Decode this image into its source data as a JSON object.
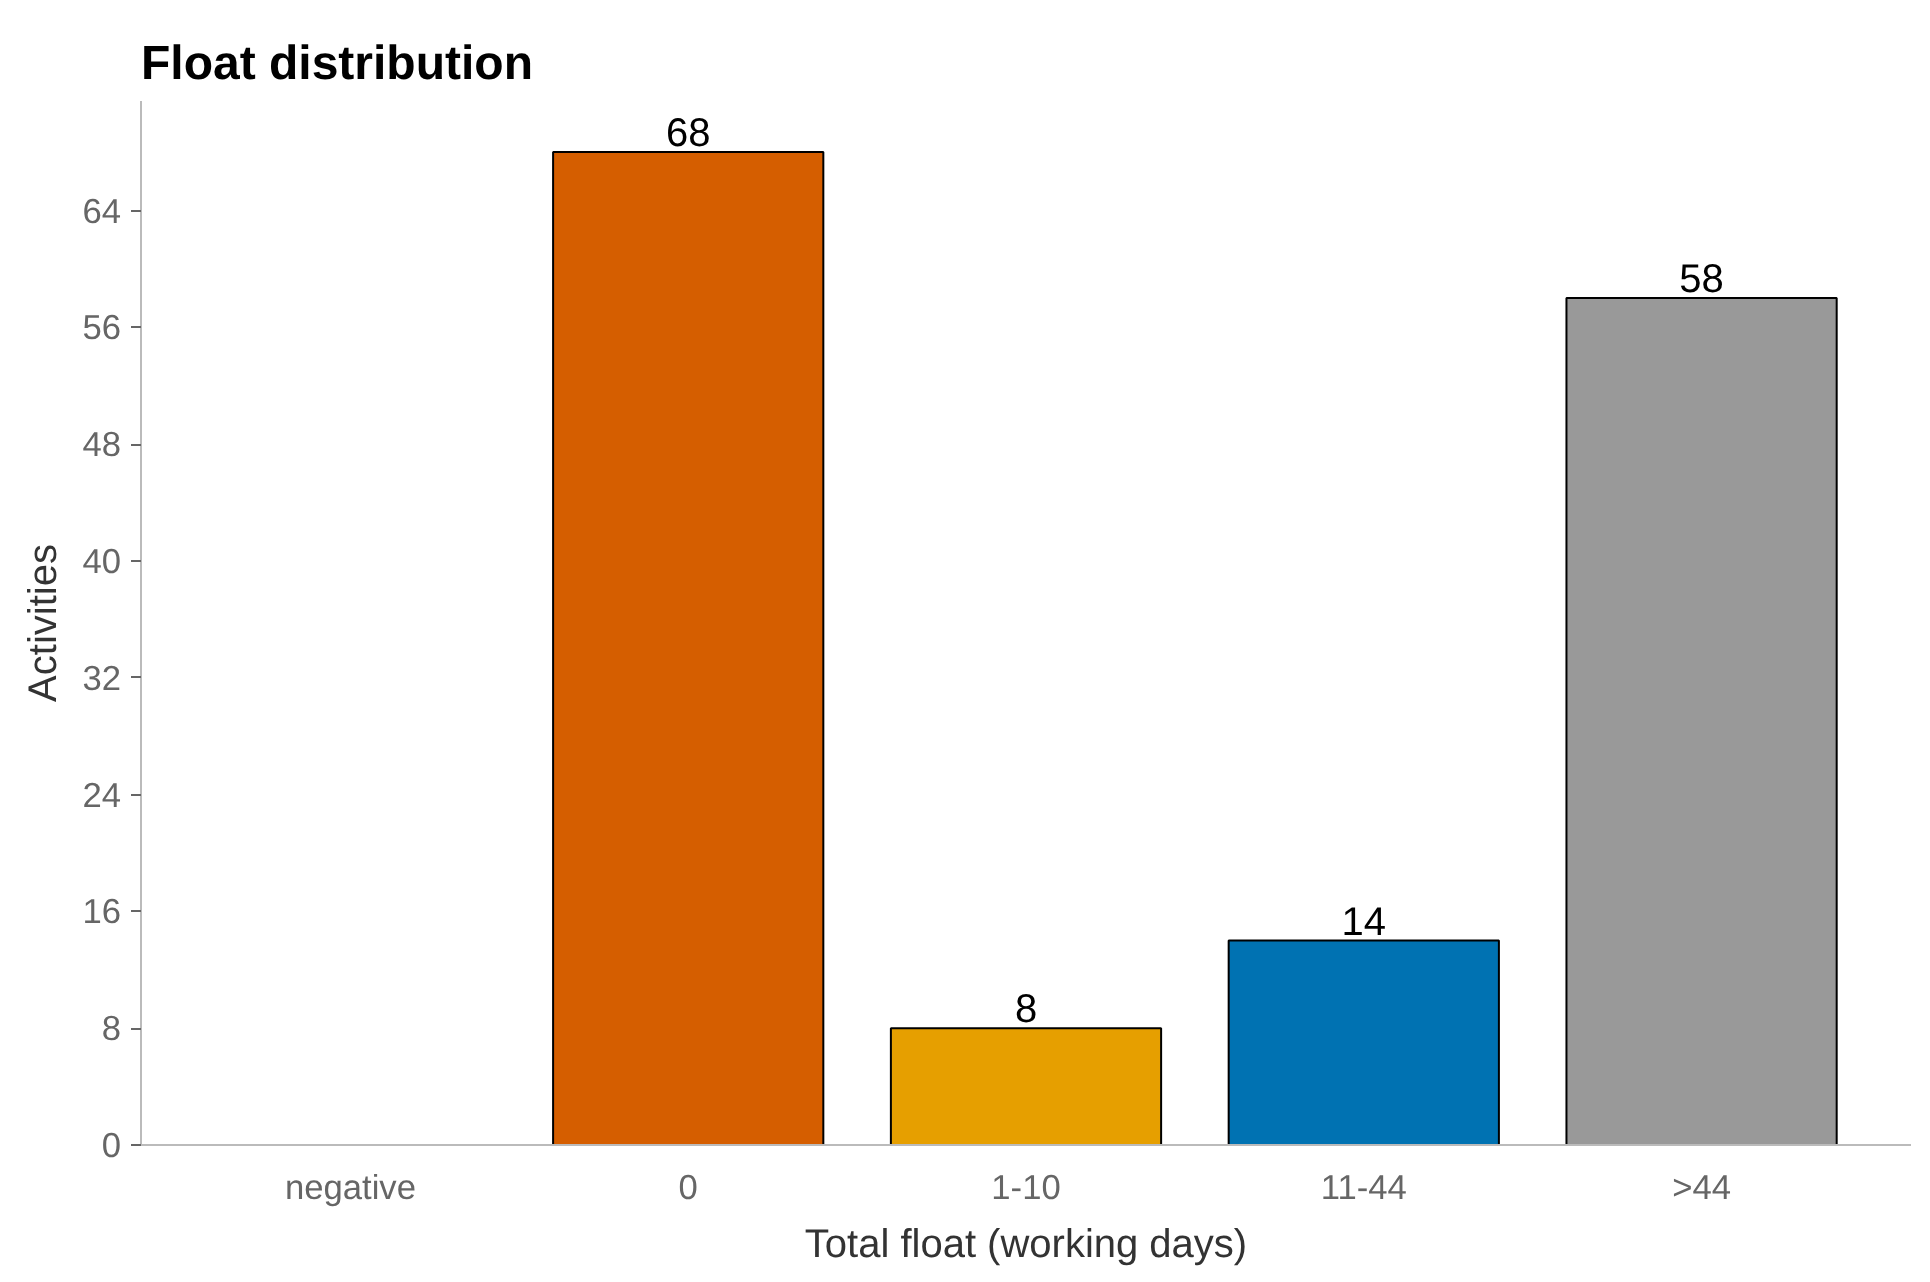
{
  "chart_data": {
    "type": "bar",
    "title": "Float distribution",
    "xlabel": "Total float (working days)",
    "ylabel": "Activities",
    "categories": [
      "negative",
      "0",
      "1-10",
      "11-44",
      ">44"
    ],
    "values": [
      0,
      68,
      8,
      14,
      58
    ],
    "colors": [
      "#cc79a7",
      "#d55e00",
      "#e69f00",
      "#0072b2",
      "#999999"
    ],
    "value_labels": [
      null,
      "68",
      "8",
      "14",
      "58"
    ],
    "ylim": [
      0,
      71.5
    ],
    "yticks": [
      0,
      8,
      16,
      24,
      32,
      40,
      48,
      56,
      64
    ],
    "grid": false
  }
}
